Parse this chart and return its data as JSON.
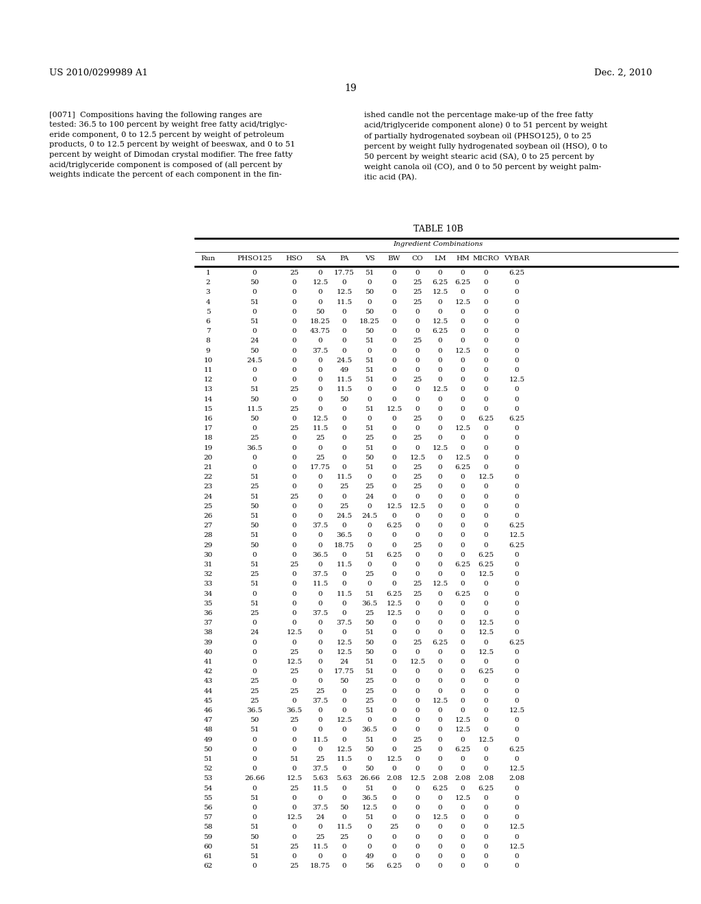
{
  "patent_number": "US 2010/0299989 A1",
  "patent_date": "Dec. 2, 2010",
  "page_number": "19",
  "left_col_text": "[0071]  Compositions having the following ranges are\ntested: 36.5 to 100 percent by weight free fatty acid/triglyc-\neride component, 0 to 12.5 percent by weight of petroleum\nproducts, 0 to 12.5 percent by weight of beeswax, and 0 to 51\npercent by weight of Dimodan crystal modifier. The free fatty\nacid/triglyceride component is composed of (all percent by\nweights indicate the percent of each component in the fin-",
  "right_col_text": "ished candle not the percentage make-up of the free fatty\nacid/triglyceride component alone) 0 to 51 percent by weight\nof partially hydrogenated soybean oil (PHSO125), 0 to 25\npercent by weight fully hydrogenated soybean oil (HSO), 0 to\n50 percent by weight stearic acid (SA), 0 to 25 percent by\nweight canola oil (CO), and 0 to 50 percent by weight palm-\nitic acid (PA).",
  "table_title": "TABLE 10B",
  "col_header_group": "Ingredient Combinations",
  "columns": [
    "Run",
    "PHSO125",
    "HSO",
    "SA",
    "PA",
    "VS",
    "BW",
    "CO",
    "LM",
    "HM",
    "MICRO",
    "VYBAR"
  ],
  "rows": [
    [
      1,
      0,
      25,
      0,
      17.75,
      51,
      0,
      0,
      0,
      0,
      0,
      6.25
    ],
    [
      2,
      50,
      0,
      12.5,
      0,
      0,
      0,
      25,
      6.25,
      6.25,
      0,
      0
    ],
    [
      3,
      0,
      0,
      0,
      12.5,
      50,
      0,
      25,
      12.5,
      0,
      0,
      0
    ],
    [
      4,
      51,
      0,
      0,
      11.5,
      0,
      0,
      25,
      0,
      12.5,
      0,
      0
    ],
    [
      5,
      0,
      0,
      50,
      0,
      50,
      0,
      0,
      0,
      0,
      0,
      0
    ],
    [
      6,
      51,
      0,
      18.25,
      0,
      18.25,
      0,
      0,
      12.5,
      0,
      0,
      0
    ],
    [
      7,
      0,
      0,
      43.75,
      0,
      50,
      0,
      0,
      6.25,
      0,
      0,
      0
    ],
    [
      8,
      24,
      0,
      0,
      0,
      51,
      0,
      25,
      0,
      0,
      0,
      0
    ],
    [
      9,
      50,
      0,
      37.5,
      0,
      0,
      0,
      0,
      0,
      12.5,
      0,
      0
    ],
    [
      10,
      24.5,
      0,
      0,
      24.5,
      51,
      0,
      0,
      0,
      0,
      0,
      0
    ],
    [
      11,
      0,
      0,
      0,
      49,
      51,
      0,
      0,
      0,
      0,
      0,
      0
    ],
    [
      12,
      0,
      0,
      0,
      11.5,
      51,
      0,
      25,
      0,
      0,
      0,
      12.5
    ],
    [
      13,
      51,
      25,
      0,
      11.5,
      0,
      0,
      0,
      12.5,
      0,
      0,
      0
    ],
    [
      14,
      50,
      0,
      0,
      50,
      0,
      0,
      0,
      0,
      0,
      0,
      0
    ],
    [
      15,
      11.5,
      25,
      0,
      0,
      51,
      12.5,
      0,
      0,
      0,
      0,
      0
    ],
    [
      16,
      50,
      0,
      12.5,
      0,
      0,
      0,
      25,
      0,
      0,
      6.25,
      6.25
    ],
    [
      17,
      0,
      25,
      11.5,
      0,
      51,
      0,
      0,
      0,
      12.5,
      0,
      0
    ],
    [
      18,
      25,
      0,
      25,
      0,
      25,
      0,
      25,
      0,
      0,
      0,
      0
    ],
    [
      19,
      36.5,
      0,
      0,
      0,
      51,
      0,
      0,
      12.5,
      0,
      0,
      0
    ],
    [
      20,
      0,
      0,
      25,
      0,
      50,
      0,
      12.5,
      0,
      12.5,
      0,
      0
    ],
    [
      21,
      0,
      0,
      17.75,
      0,
      51,
      0,
      25,
      0,
      6.25,
      0,
      0
    ],
    [
      22,
      51,
      0,
      0,
      11.5,
      0,
      0,
      25,
      0,
      0,
      12.5,
      0
    ],
    [
      23,
      25,
      0,
      0,
      25,
      25,
      0,
      25,
      0,
      0,
      0,
      0
    ],
    [
      24,
      51,
      25,
      0,
      0,
      24,
      0,
      0,
      0,
      0,
      0,
      0
    ],
    [
      25,
      50,
      0,
      0,
      25,
      0,
      12.5,
      12.5,
      0,
      0,
      0,
      0
    ],
    [
      26,
      51,
      0,
      0,
      24.5,
      24.5,
      0,
      0,
      0,
      0,
      0,
      0
    ],
    [
      27,
      50,
      0,
      37.5,
      0,
      0,
      6.25,
      0,
      0,
      0,
      0,
      6.25
    ],
    [
      28,
      51,
      0,
      0,
      36.5,
      0,
      0,
      0,
      0,
      0,
      0,
      12.5
    ],
    [
      29,
      50,
      0,
      0,
      18.75,
      0,
      0,
      25,
      0,
      0,
      0,
      6.25
    ],
    [
      30,
      0,
      0,
      36.5,
      0,
      51,
      6.25,
      0,
      0,
      0,
      6.25,
      0
    ],
    [
      31,
      51,
      25,
      0,
      11.5,
      0,
      0,
      0,
      0,
      6.25,
      6.25,
      0
    ],
    [
      32,
      25,
      0,
      37.5,
      0,
      25,
      0,
      0,
      0,
      0,
      12.5,
      0
    ],
    [
      33,
      51,
      0,
      11.5,
      0,
      0,
      0,
      25,
      12.5,
      0,
      0,
      0
    ],
    [
      34,
      0,
      0,
      0,
      11.5,
      51,
      6.25,
      25,
      0,
      6.25,
      0,
      0
    ],
    [
      35,
      51,
      0,
      0,
      0,
      36.5,
      12.5,
      0,
      0,
      0,
      0,
      0
    ],
    [
      36,
      25,
      0,
      37.5,
      0,
      25,
      12.5,
      0,
      0,
      0,
      0,
      0
    ],
    [
      37,
      0,
      0,
      0,
      37.5,
      50,
      0,
      0,
      0,
      0,
      12.5,
      0
    ],
    [
      38,
      24,
      12.5,
      0,
      0,
      51,
      0,
      0,
      0,
      0,
      12.5,
      0
    ],
    [
      39,
      0,
      0,
      0,
      12.5,
      50,
      0,
      25,
      6.25,
      0,
      0,
      6.25
    ],
    [
      40,
      0,
      25,
      0,
      12.5,
      50,
      0,
      0,
      0,
      0,
      12.5,
      0
    ],
    [
      41,
      0,
      12.5,
      0,
      24,
      51,
      0,
      12.5,
      0,
      0,
      0,
      0
    ],
    [
      42,
      0,
      25,
      0,
      17.75,
      51,
      0,
      0,
      0,
      0,
      6.25,
      0
    ],
    [
      43,
      25,
      0,
      0,
      50,
      25,
      0,
      0,
      0,
      0,
      0,
      0
    ],
    [
      44,
      25,
      25,
      25,
      0,
      25,
      0,
      0,
      0,
      0,
      0,
      0
    ],
    [
      45,
      25,
      0,
      37.5,
      0,
      25,
      0,
      0,
      12.5,
      0,
      0,
      0
    ],
    [
      46,
      36.5,
      36.5,
      0,
      0,
      51,
      0,
      0,
      0,
      0,
      0,
      12.5
    ],
    [
      47,
      50,
      25,
      0,
      12.5,
      0,
      0,
      0,
      0,
      12.5,
      0,
      0
    ],
    [
      48,
      51,
      0,
      0,
      0,
      36.5,
      0,
      0,
      0,
      12.5,
      0,
      0
    ],
    [
      49,
      0,
      0,
      11.5,
      0,
      51,
      0,
      25,
      0,
      0,
      12.5,
      0
    ],
    [
      50,
      0,
      0,
      0,
      12.5,
      50,
      0,
      25,
      0,
      6.25,
      0,
      6.25
    ],
    [
      51,
      0,
      51,
      25,
      11.5,
      0,
      12.5,
      0,
      0,
      0,
      0,
      0
    ],
    [
      52,
      0,
      0,
      37.5,
      0,
      50,
      0,
      0,
      0,
      0,
      0,
      12.5
    ],
    [
      53,
      26.66,
      12.5,
      5.63,
      5.63,
      26.66,
      2.08,
      12.5,
      2.08,
      2.08,
      2.08,
      2.08
    ],
    [
      54,
      0,
      25,
      11.5,
      0,
      51,
      0,
      0,
      6.25,
      0,
      6.25,
      0
    ],
    [
      55,
      51,
      0,
      0,
      0,
      36.5,
      0,
      0,
      0,
      12.5,
      0,
      0
    ],
    [
      56,
      0,
      0,
      37.5,
      50,
      12.5,
      0,
      0,
      0,
      0,
      0,
      0
    ],
    [
      57,
      0,
      12.5,
      24,
      0,
      51,
      0,
      0,
      12.5,
      0,
      0,
      0
    ],
    [
      58,
      51,
      0,
      0,
      11.5,
      0,
      25,
      0,
      0,
      0,
      0,
      12.5
    ],
    [
      59,
      50,
      0,
      25,
      25,
      0,
      0,
      0,
      0,
      0,
      0,
      0
    ],
    [
      60,
      51,
      25,
      11.5,
      0,
      0,
      0,
      0,
      0,
      0,
      0,
      12.5
    ],
    [
      61,
      51,
      0,
      0,
      0,
      49,
      0,
      0,
      0,
      0,
      0,
      0
    ],
    [
      62,
      0,
      25,
      18.75,
      0,
      56,
      6.25,
      0,
      0,
      0,
      0,
      0
    ]
  ]
}
